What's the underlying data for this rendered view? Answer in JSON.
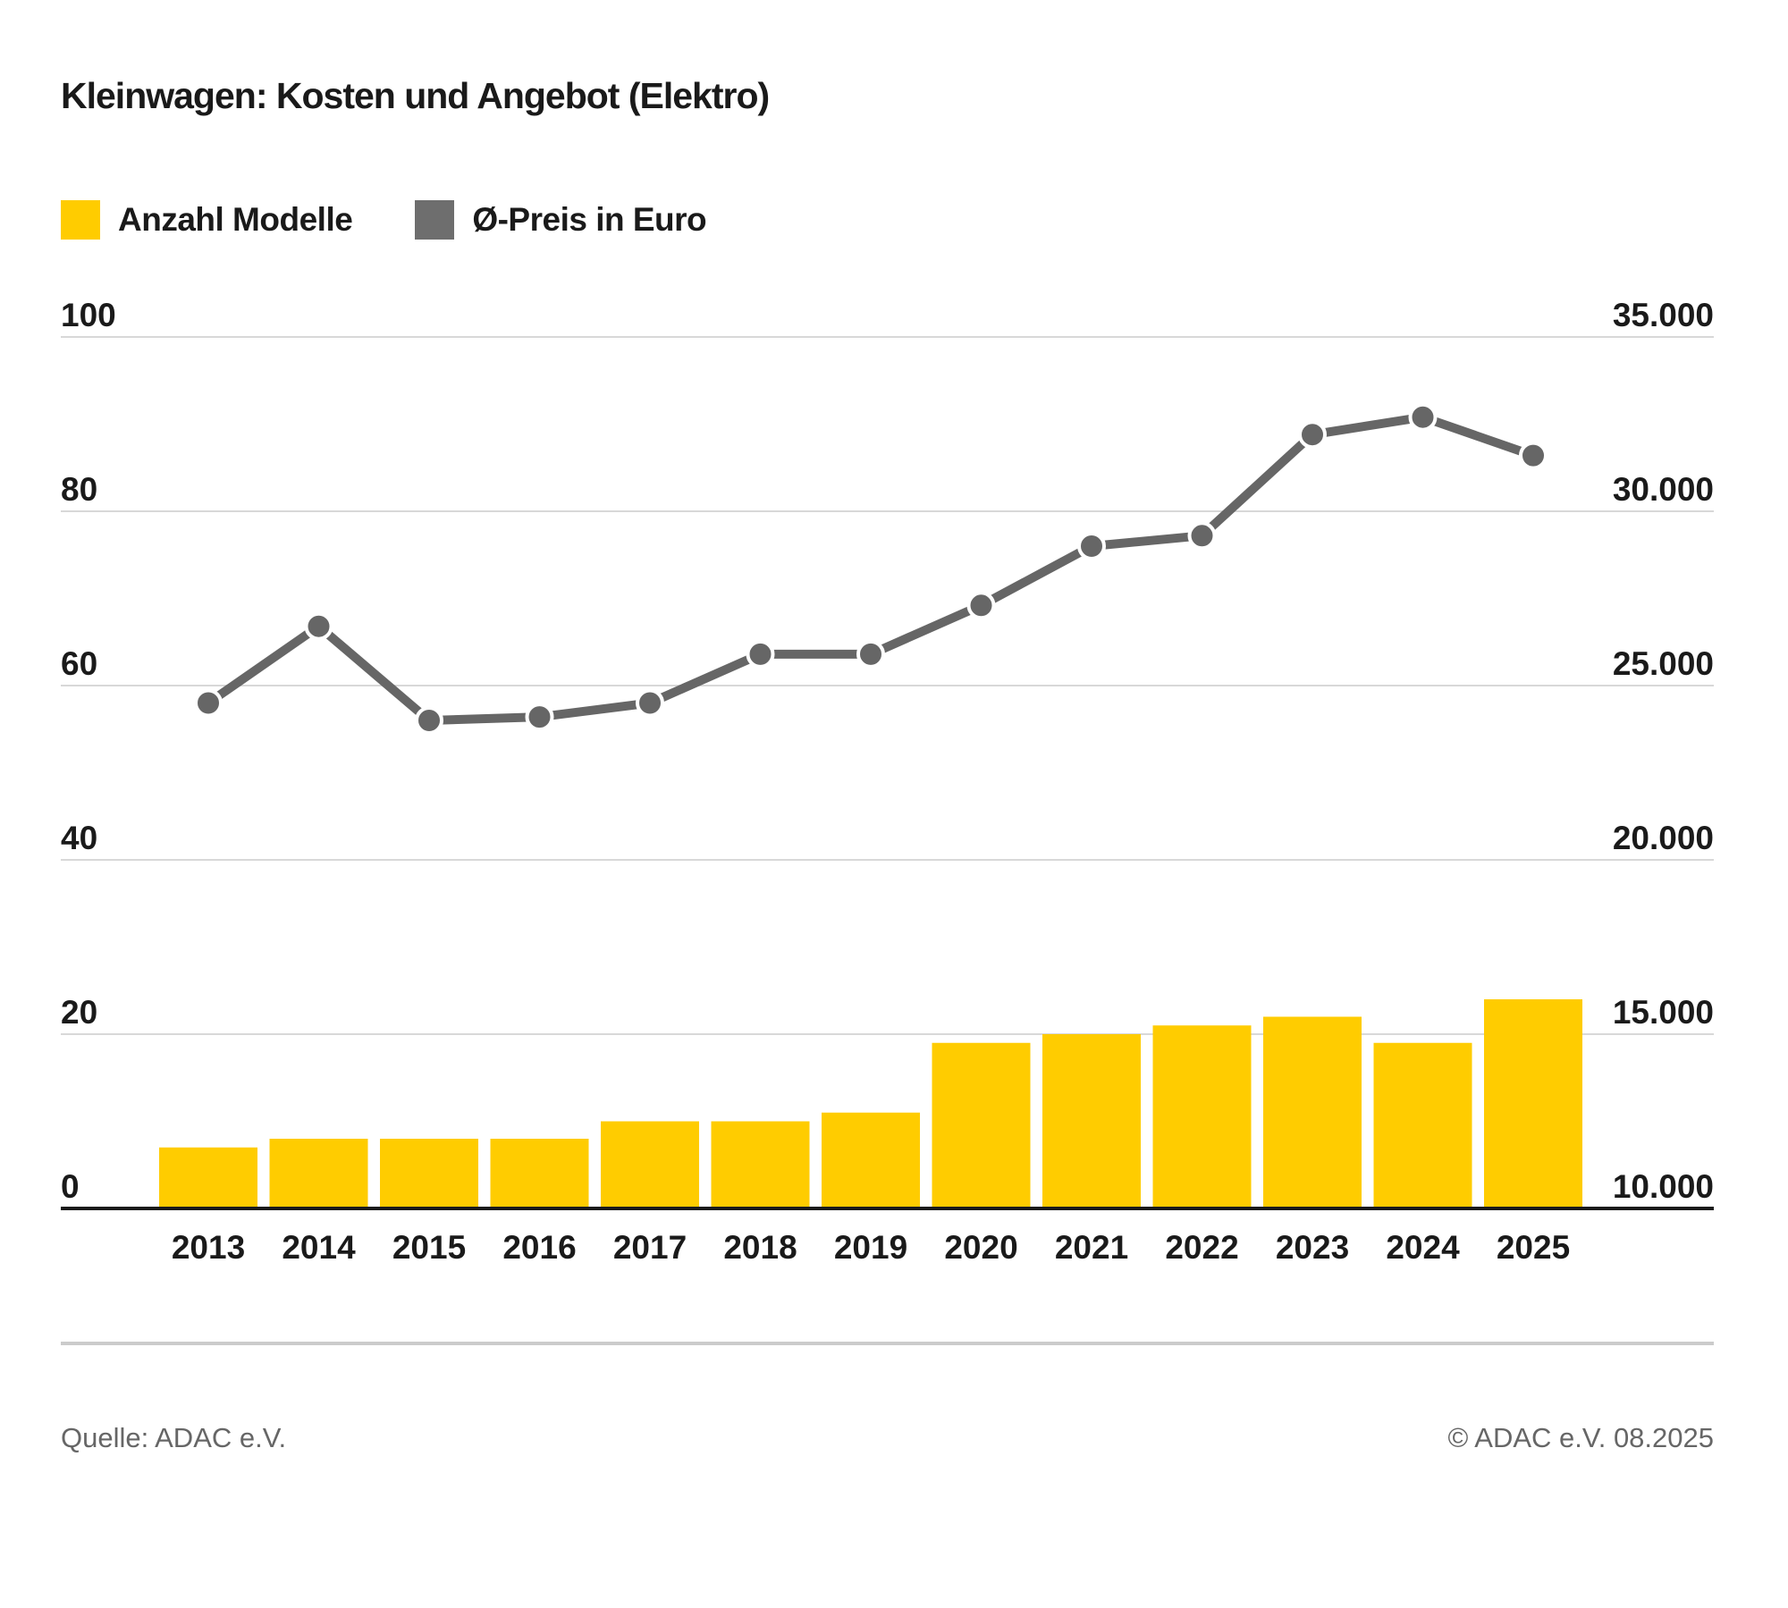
{
  "title": "Kleinwagen: Kosten und Angebot (Elektro)",
  "legend": {
    "models": {
      "label": "Anzahl Modelle",
      "color": "#FFCC00"
    },
    "price": {
      "label": "Ø-Preis in Euro",
      "color": "#6E6E6E"
    }
  },
  "chart_data": {
    "type": "bar",
    "subtype": "combo-bar-line-dual-axis",
    "categories": [
      "2013",
      "2014",
      "2015",
      "2016",
      "2017",
      "2018",
      "2019",
      "2020",
      "2021",
      "2022",
      "2023",
      "2024",
      "2025"
    ],
    "series": [
      {
        "name": "Anzahl Modelle",
        "type": "bar",
        "axis": "left",
        "color": "#FFCC00",
        "values": [
          7,
          8,
          8,
          8,
          10,
          10,
          11,
          19,
          20,
          21,
          22,
          19,
          24
        ]
      },
      {
        "name": "Ø-Preis in Euro",
        "type": "line",
        "axis": "right",
        "color": "#666666",
        "values": [
          24500,
          26700,
          24000,
          24100,
          24500,
          25900,
          25900,
          27300,
          29000,
          29300,
          32200,
          32700,
          31600
        ]
      }
    ],
    "left_axis": {
      "min": 0,
      "max": 100,
      "tick_step": 20,
      "tick_labels": [
        "0",
        "20",
        "40",
        "60",
        "80",
        "100"
      ]
    },
    "right_axis": {
      "min": 10000,
      "max": 35000,
      "tick_step": 5000,
      "tick_labels": [
        "10.000",
        "15.000",
        "20.000",
        "25.000",
        "30.000",
        "35.000"
      ]
    },
    "grid": true,
    "legend_position": "top-left",
    "title": "Kleinwagen: Kosten und Angebot (Elektro)"
  },
  "footer": {
    "source": "Quelle: ADAC e.V.",
    "copyright": "© ADAC e.V. 08.2025"
  },
  "colors": {
    "bar": "#FFCC00",
    "line": "#666666",
    "grid": "#D8D8D8",
    "axis": "#1A1A1A",
    "text": "#1A1A1A",
    "muted": "#666666",
    "divider": "#CBCBCB",
    "background": "#FFFFFF"
  }
}
